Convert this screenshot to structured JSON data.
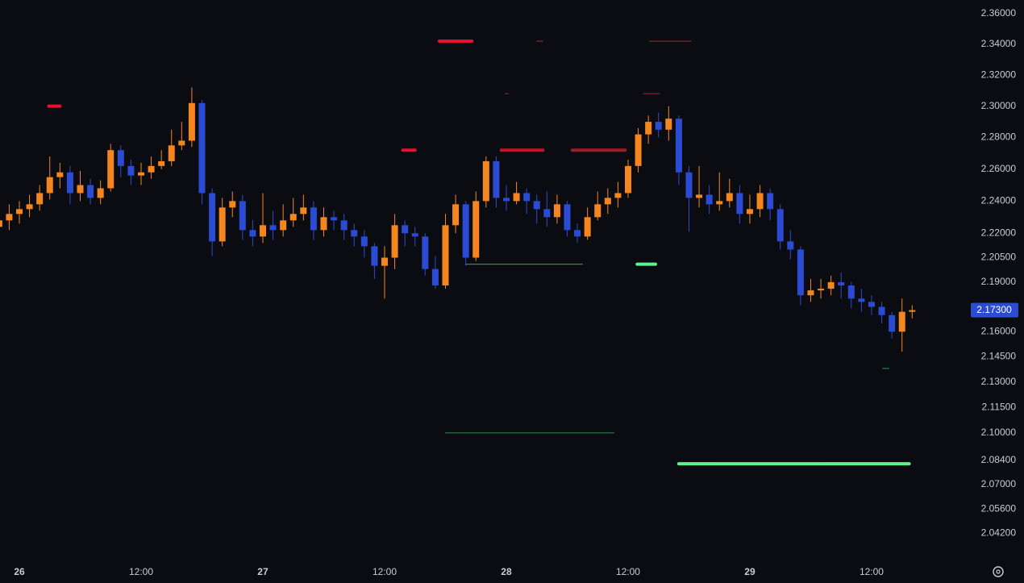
{
  "chart_data": {
    "type": "candlestick",
    "log": true,
    "up_color": "#f5861f",
    "down_color": "#2b4bd3",
    "categories": [
      null,
      null,
      "26",
      null,
      null,
      null,
      null,
      null,
      null,
      null,
      null,
      null,
      null,
      null,
      "12:00",
      null,
      null,
      null,
      null,
      null,
      null,
      null,
      null,
      null,
      null,
      null,
      "27",
      null,
      null,
      null,
      null,
      null,
      null,
      null,
      null,
      null,
      null,
      null,
      "12:00",
      null,
      null,
      null,
      null,
      null,
      null,
      null,
      null,
      null,
      null,
      null,
      "28",
      null,
      null,
      null,
      null,
      null,
      null,
      null,
      null,
      null,
      null,
      null,
      "12:00",
      null,
      null,
      null,
      null,
      null,
      null,
      null,
      null,
      null,
      null,
      null,
      "29",
      null,
      null,
      null,
      null,
      null,
      null,
      null,
      null,
      null,
      null,
      null,
      "12:00",
      null,
      null,
      null,
      null
    ],
    "open": [
      2.224,
      2.228,
      2.232,
      2.235,
      2.238,
      2.245,
      2.255,
      2.258,
      2.245,
      2.25,
      2.242,
      2.248,
      2.272,
      2.262,
      2.256,
      2.258,
      2.262,
      2.265,
      2.275,
      2.278,
      2.302,
      2.245,
      2.215,
      2.236,
      2.24,
      2.222,
      2.218,
      2.225,
      2.222,
      2.228,
      2.232,
      2.236,
      2.222,
      2.23,
      2.228,
      2.222,
      2.218,
      2.212,
      2.2,
      2.205,
      2.225,
      2.22,
      2.218,
      2.198,
      2.188,
      2.225,
      2.238,
      2.205,
      2.24,
      2.265,
      2.242,
      2.24,
      2.245,
      2.24,
      2.235,
      2.23,
      2.238,
      2.222,
      2.218,
      2.23,
      2.238,
      2.242,
      2.245,
      2.262,
      2.282,
      2.29,
      2.285,
      2.292,
      2.258,
      2.242,
      2.244,
      2.238,
      2.24,
      2.245,
      2.232,
      2.235,
      2.245,
      2.235,
      2.215,
      2.21,
      2.182,
      2.185,
      2.186,
      2.19,
      2.188,
      2.18,
      2.178,
      2.175,
      2.17,
      2.16,
      2.172
    ],
    "high": [
      2.234,
      2.238,
      2.24,
      2.244,
      2.25,
      2.268,
      2.264,
      2.262,
      2.259,
      2.254,
      2.253,
      2.276,
      2.275,
      2.266,
      2.264,
      2.268,
      2.272,
      2.285,
      2.29,
      2.312,
      2.304,
      2.248,
      2.242,
      2.246,
      2.244,
      2.228,
      2.245,
      2.234,
      2.238,
      2.242,
      2.244,
      2.24,
      2.236,
      2.234,
      2.232,
      2.226,
      2.222,
      2.214,
      2.212,
      2.232,
      2.228,
      2.224,
      2.22,
      2.206,
      2.232,
      2.244,
      2.24,
      2.246,
      2.268,
      2.268,
      2.25,
      2.252,
      2.248,
      2.244,
      2.246,
      2.244,
      2.24,
      2.226,
      2.236,
      2.246,
      2.248,
      2.252,
      2.266,
      2.286,
      2.294,
      2.296,
      2.3,
      2.294,
      2.262,
      2.262,
      2.25,
      2.258,
      2.254,
      2.25,
      2.244,
      2.25,
      2.248,
      2.238,
      2.222,
      2.212,
      2.192,
      2.192,
      2.194,
      2.196,
      2.19,
      2.186,
      2.182,
      2.178,
      2.172,
      2.18,
      2.176
    ],
    "low": [
      2.219,
      2.222,
      2.226,
      2.23,
      2.234,
      2.241,
      2.248,
      2.238,
      2.24,
      2.238,
      2.238,
      2.246,
      2.255,
      2.25,
      2.25,
      2.254,
      2.26,
      2.262,
      2.272,
      2.274,
      2.238,
      2.206,
      2.212,
      2.23,
      2.216,
      2.212,
      2.214,
      2.216,
      2.218,
      2.224,
      2.228,
      2.216,
      2.218,
      2.222,
      2.216,
      2.212,
      2.205,
      2.192,
      2.18,
      2.198,
      2.212,
      2.212,
      2.194,
      2.186,
      2.186,
      2.22,
      2.2,
      2.203,
      2.236,
      2.236,
      2.234,
      2.238,
      2.232,
      2.226,
      2.224,
      2.226,
      2.218,
      2.214,
      2.216,
      2.228,
      2.232,
      2.236,
      2.242,
      2.258,
      2.276,
      2.28,
      2.278,
      2.25,
      2.221,
      2.236,
      2.232,
      2.234,
      2.236,
      2.226,
      2.226,
      2.23,
      2.228,
      2.21,
      2.204,
      2.176,
      2.178,
      2.18,
      2.182,
      2.18,
      2.174,
      2.172,
      2.17,
      2.165,
      2.156,
      2.148,
      2.168
    ],
    "close": [
      2.228,
      2.232,
      2.235,
      2.238,
      2.245,
      2.255,
      2.258,
      2.245,
      2.25,
      2.242,
      2.248,
      2.272,
      2.262,
      2.256,
      2.258,
      2.262,
      2.265,
      2.275,
      2.278,
      2.302,
      2.245,
      2.215,
      2.236,
      2.24,
      2.222,
      2.218,
      2.225,
      2.222,
      2.228,
      2.232,
      2.236,
      2.222,
      2.23,
      2.228,
      2.222,
      2.218,
      2.212,
      2.2,
      2.205,
      2.225,
      2.22,
      2.218,
      2.198,
      2.188,
      2.225,
      2.238,
      2.205,
      2.24,
      2.265,
      2.242,
      2.24,
      2.245,
      2.24,
      2.235,
      2.23,
      2.238,
      2.222,
      2.218,
      2.23,
      2.238,
      2.242,
      2.245,
      2.262,
      2.282,
      2.29,
      2.285,
      2.292,
      2.258,
      2.242,
      2.244,
      2.238,
      2.24,
      2.245,
      2.232,
      2.235,
      2.245,
      2.235,
      2.215,
      2.21,
      2.182,
      2.185,
      2.186,
      2.19,
      2.188,
      2.18,
      2.178,
      2.175,
      2.17,
      2.16,
      2.172,
      2.173
    ],
    "ylim": [
      2.029,
      2.369
    ],
    "yticks": [
      {
        "value": 2.36,
        "label": "2.36000"
      },
      {
        "value": 2.34,
        "label": "2.34000"
      },
      {
        "value": 2.32,
        "label": "2.32000"
      },
      {
        "value": 2.3,
        "label": "2.30000"
      },
      {
        "value": 2.28,
        "label": "2.28000"
      },
      {
        "value": 2.26,
        "label": "2.26000"
      },
      {
        "value": 2.24,
        "label": "2.24000"
      },
      {
        "value": 2.22,
        "label": "2.22000"
      },
      {
        "value": 2.205,
        "label": "2.20500"
      },
      {
        "value": 2.19,
        "label": "2.19000"
      },
      {
        "value": 2.16,
        "label": "2.16000"
      },
      {
        "value": 2.145,
        "label": "2.14500"
      },
      {
        "value": 2.13,
        "label": "2.13000"
      },
      {
        "value": 2.115,
        "label": "2.11500"
      },
      {
        "value": 2.1,
        "label": "2.10000"
      },
      {
        "value": 2.084,
        "label": "2.08400"
      },
      {
        "value": 2.07,
        "label": "2.07000"
      },
      {
        "value": 2.056,
        "label": "2.05600"
      },
      {
        "value": 2.042,
        "label": "2.04200"
      }
    ],
    "last_price": {
      "value": 2.173,
      "label": "2.17300"
    },
    "levels": [
      {
        "price": 2.342,
        "from": 43.4,
        "to": 46.6,
        "color": "#e8102e",
        "style": "thick"
      },
      {
        "price": 2.342,
        "from": 53.0,
        "to": 53.6,
        "color": "#8a2a2a",
        "style": "thin"
      },
      {
        "price": 2.342,
        "from": 64.1,
        "to": 68.2,
        "color": "#8a2a2a",
        "style": "thin"
      },
      {
        "price": 2.3,
        "from": 4.9,
        "to": 6.0,
        "color": "#e8102e",
        "style": "thick"
      },
      {
        "price": 2.308,
        "from": 49.9,
        "to": 50.2,
        "color": "#8a2a2a",
        "style": "thin"
      },
      {
        "price": 2.308,
        "from": 63.5,
        "to": 65.1,
        "color": "#8a2a2a",
        "style": "thin"
      },
      {
        "price": 2.272,
        "from": 39.8,
        "to": 41.0,
        "color": "#e8102e",
        "style": "thick"
      },
      {
        "price": 2.272,
        "from": 49.5,
        "to": 53.6,
        "color": "#c8102a",
        "style": "thick"
      },
      {
        "price": 2.272,
        "from": 56.5,
        "to": 61.7,
        "color": "#a01a28",
        "style": "thick"
      },
      {
        "price": 2.201,
        "from": 46.0,
        "to": 57.5,
        "color": "#2e8a4e",
        "style": "thin"
      },
      {
        "price": 2.201,
        "from": 62.9,
        "to": 64.7,
        "color": "#5ef28f",
        "style": "thick"
      },
      {
        "price": 2.1,
        "from": 44.0,
        "to": 60.6,
        "color": "#2e7d4a",
        "style": "thin"
      },
      {
        "price": 2.082,
        "from": 67.0,
        "to": 89.7,
        "color": "#5ef28f",
        "style": "thick"
      },
      {
        "price": 2.138,
        "from": 87.1,
        "to": 87.7,
        "color": "#2e8a4e",
        "style": "thin"
      }
    ]
  }
}
